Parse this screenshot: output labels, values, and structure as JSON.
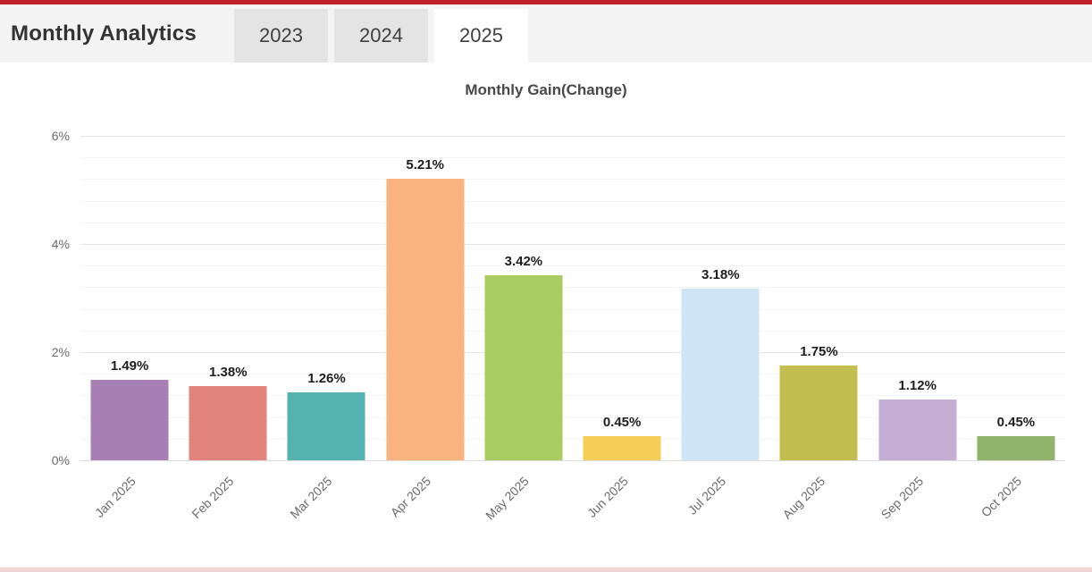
{
  "header": {
    "title": "Monthly Analytics",
    "tabs": [
      {
        "label": "2023",
        "active": false
      },
      {
        "label": "2024",
        "active": false
      },
      {
        "label": "2025",
        "active": true
      }
    ]
  },
  "chart_data": {
    "type": "bar",
    "title": "Monthly Gain(Change)",
    "categories": [
      "Jan 2025",
      "Feb 2025",
      "Mar 2025",
      "Apr 2025",
      "May 2025",
      "Jun 2025",
      "Jul 2025",
      "Aug 2025",
      "Sep 2025",
      "Oct 2025"
    ],
    "values": [
      1.49,
      1.38,
      1.26,
      5.21,
      3.42,
      0.45,
      3.18,
      1.75,
      1.12,
      0.45
    ],
    "value_labels": [
      "1.49%",
      "1.38%",
      "1.26%",
      "5.21%",
      "3.42%",
      "0.45%",
      "3.18%",
      "1.75%",
      "1.12%",
      "0.45%"
    ],
    "bar_colors": [
      "#a77fb5",
      "#e2837c",
      "#54b2af",
      "#f9b37e",
      "#a8cc60",
      "#f6cd55",
      "#cfe4f4",
      "#c2bf50",
      "#c4aed3",
      "#8fb36a"
    ],
    "xlabel": "",
    "ylabel": "",
    "yticks": [
      {
        "label": "0%",
        "value": 0
      },
      {
        "label": "2%",
        "value": 2
      },
      {
        "label": "4%",
        "value": 4
      },
      {
        "label": "6%",
        "value": 6
      }
    ],
    "ylim": [
      0,
      6
    ],
    "grid": "horizontal, minor every 0.4",
    "legend_position": "none"
  },
  "colors": {
    "top_accent": "#bd2227",
    "bottom_accent": "#f2d5d5",
    "header_bg": "#f4f4f4",
    "tab_inactive_bg": "#e4e4e4",
    "tab_active_bg": "#ffffff"
  }
}
